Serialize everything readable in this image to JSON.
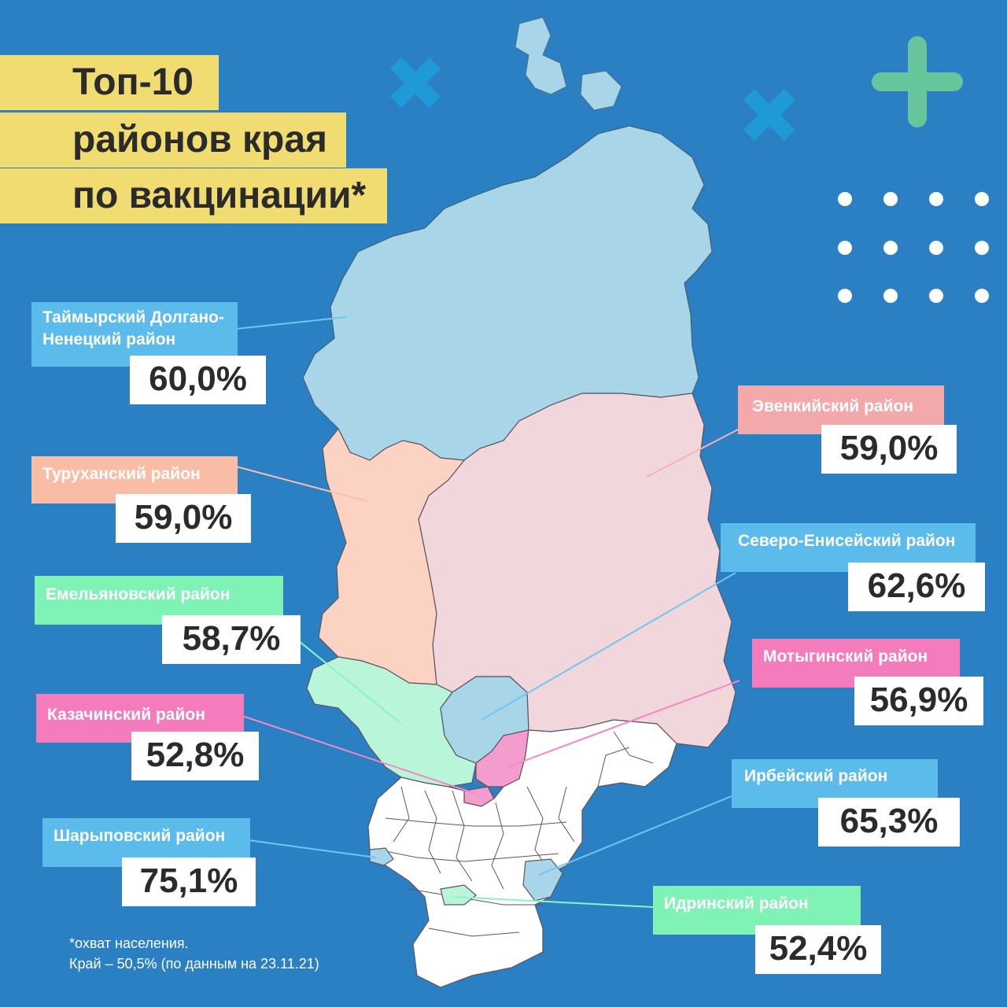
{
  "title": {
    "line1": "Топ-10",
    "line2": "районов края",
    "line3": "по вакцинации*"
  },
  "colors": {
    "background": "#2b7fc3",
    "title_bg": "#f0dc70",
    "light_blue": "#a9d5e9",
    "peach": "#fcd3c3",
    "pale_pink": "#f1d7dc",
    "mint": "#b9f6d9",
    "pink": "#f49ccd",
    "white": "#ffffff"
  },
  "districts": [
    {
      "id": "taimyr",
      "label": "Таймырский Долгано-Ненецкий район",
      "label_line1": "Таймырский Долгано-",
      "label_line2": "Ненецкий район",
      "value": "60,0%",
      "label_color": "#5bbcec",
      "line_color": "#6fc7f0"
    },
    {
      "id": "evenki",
      "label": "Эвенкийский район",
      "value": "59,0%",
      "label_color": "#f3a9aa",
      "line_color": "#f6b3b3"
    },
    {
      "id": "turukhansk",
      "label": "Туруханский район",
      "value": "59,0%",
      "label_color": "#f9bca4",
      "line_color": "#f8c0aa"
    },
    {
      "id": "severo_eniseisk",
      "label": "Северо-Енисейский район",
      "value": "62,6%",
      "label_color": "#5bbcec",
      "line_color": "#6fc7f0"
    },
    {
      "id": "emelyanovo",
      "label": "Емельяновский район",
      "value": "58,7%",
      "label_color": "#7ff3b6",
      "line_color": "#8af5c0"
    },
    {
      "id": "motygino",
      "label": "Мотыгинский район",
      "value": "56,9%",
      "label_color": "#f47bbc",
      "line_color": "#f488c4"
    },
    {
      "id": "kazachinsk",
      "label": "Казачинский район",
      "value": "52,8%",
      "label_color": "#f47bbc",
      "line_color": "#f488c4"
    },
    {
      "id": "irbei",
      "label": "Ирбейский район",
      "value": "65,3%",
      "label_color": "#5bbcec",
      "line_color": "#6fc7f0"
    },
    {
      "id": "sharypovo",
      "label": "Шарыповский район",
      "value": "75,1%",
      "label_color": "#5bbcec",
      "line_color": "#6fc7f0"
    },
    {
      "id": "idrinsk",
      "label": "Идринский район",
      "value": "52,4%",
      "label_color": "#7ff3b6",
      "line_color": "#8af5c0"
    }
  ],
  "footnote": {
    "line1": "*охват населения.",
    "line2": "Край – 50,5%  (по данным на 23.11.21)"
  },
  "decor": {
    "cross_color": "#1e9ad9",
    "plus_color": "#66c59a",
    "dot_color": "#ffffff"
  }
}
